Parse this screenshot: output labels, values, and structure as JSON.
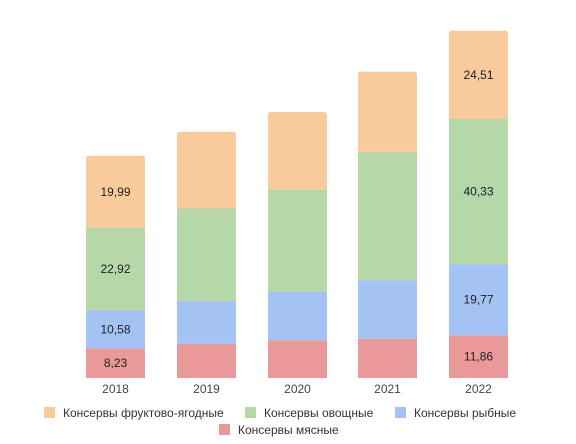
{
  "chart_data": {
    "type": "bar",
    "stacked": true,
    "title": "",
    "xlabel": "",
    "ylabel": "",
    "categories": [
      "2018",
      "2019",
      "2020",
      "2021",
      "2022"
    ],
    "ylim": [
      0,
      100
    ],
    "grid": false,
    "legend_position": "bottom",
    "series": [
      {
        "name": "Консервы мясные",
        "color": "#ea9999",
        "values": [
          8.23,
          9.5,
          10.5,
          10.9,
          11.86
        ],
        "labels": [
          "8,23",
          "",
          "",
          "",
          "11,86"
        ]
      },
      {
        "name": "Консервы рыбные",
        "color": "#a4c2f4",
        "values": [
          10.58,
          11.9,
          13.4,
          16.2,
          19.77
        ],
        "labels": [
          "10,58",
          "",
          "",
          "",
          "19,77"
        ]
      },
      {
        "name": "Консервы овощные",
        "color": "#b6d7a8",
        "values": [
          22.92,
          25.7,
          28.4,
          35.7,
          40.33
        ],
        "labels": [
          "22,92",
          "",
          "",
          "",
          "40,33"
        ]
      },
      {
        "name": "Консервы фруктово-ягодные",
        "color": "#f9cb9c",
        "values": [
          19.99,
          21.3,
          21.6,
          22.3,
          24.51
        ],
        "labels": [
          "19,99",
          "",
          "",
          "",
          "24,51"
        ]
      }
    ],
    "legend_order": [
      "Консервы фруктово-ягодные",
      "Консервы овощные",
      "Консервы рыбные",
      "Консервы мясные"
    ]
  }
}
